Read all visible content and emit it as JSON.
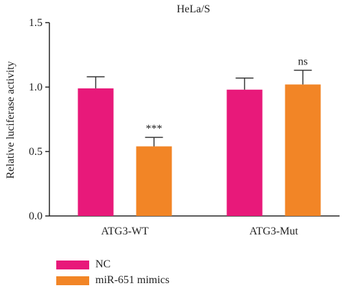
{
  "chart_data": {
    "type": "bar",
    "title": "HeLa/S",
    "xlabel": "",
    "ylabel": "Relative luciferase activity",
    "categories": [
      "ATG3-WT",
      "ATG3-Mut"
    ],
    "ylim": [
      0,
      1.5
    ],
    "yticks": [
      0.0,
      0.5,
      1.0,
      1.5
    ],
    "ytick_labels": [
      "0.0",
      "0.5",
      "1.0",
      "1.5"
    ],
    "grid": false,
    "legend_position": "bottom-left",
    "series": [
      {
        "name": "NC",
        "color": "#e8197a",
        "values": [
          0.99,
          0.98
        ],
        "errors": [
          0.09,
          0.09
        ]
      },
      {
        "name": "miR-651 mimics",
        "color": "#f28526",
        "values": [
          0.54,
          1.02
        ],
        "errors": [
          0.07,
          0.11
        ]
      }
    ],
    "annotations": [
      {
        "category": "ATG3-WT",
        "series": "miR-651 mimics",
        "text": "***"
      },
      {
        "category": "ATG3-Mut",
        "series": "miR-651 mimics",
        "text": "ns"
      }
    ]
  }
}
